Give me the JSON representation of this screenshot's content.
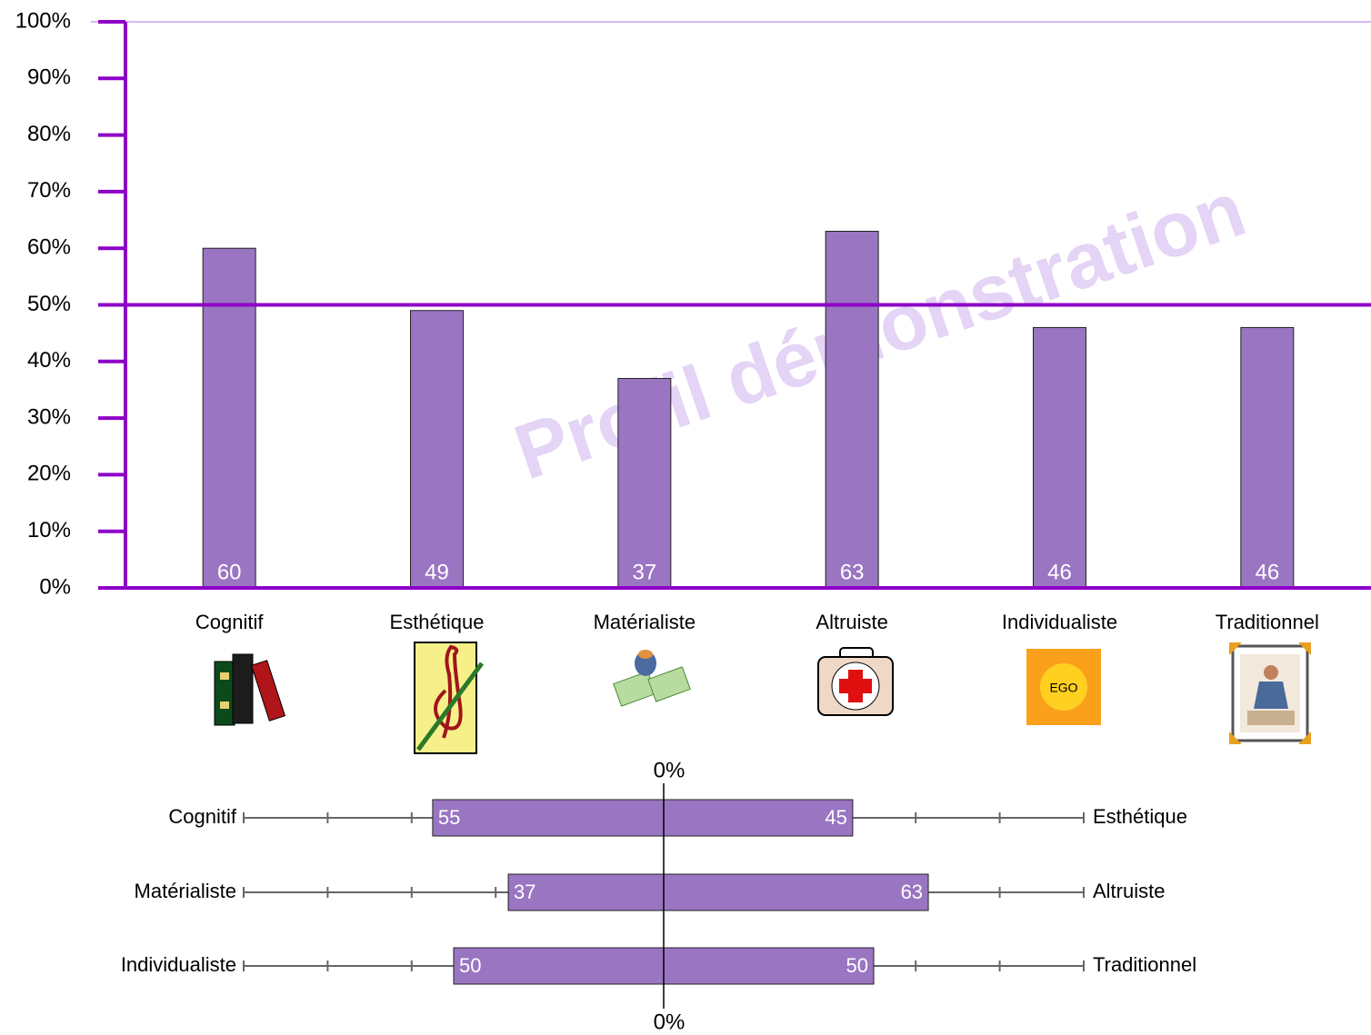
{
  "chart_data": [
    {
      "type": "bar",
      "categories": [
        "Cognitif",
        "Esthétique",
        "Matérialiste",
        "Altruiste",
        "Individualiste",
        "Traditionnel"
      ],
      "values": [
        60,
        49,
        37,
        63,
        46,
        46
      ],
      "color": "#9a75c2",
      "axis_color": "#8e00c8",
      "ylim": [
        0,
        100
      ],
      "yticks": [
        {
          "value": 0,
          "label": "0%"
        },
        {
          "value": 10,
          "label": "10%"
        },
        {
          "value": 20,
          "label": "20%"
        },
        {
          "value": 30,
          "label": "30%"
        },
        {
          "value": 40,
          "label": "40%"
        },
        {
          "value": 50,
          "label": "50%"
        },
        {
          "value": 60,
          "label": "60%"
        },
        {
          "value": 70,
          "label": "70%"
        },
        {
          "value": 80,
          "label": "80%"
        },
        {
          "value": 90,
          "label": "90%"
        },
        {
          "value": 100,
          "label": "100%"
        }
      ],
      "reference_line": 50,
      "watermark": "Profil démonstration",
      "icon_label": "EGO"
    },
    {
      "type": "diverging_bar",
      "rows": [
        {
          "left_label": "Cognitif",
          "right_label": "Esthétique",
          "left_value": 55,
          "right_value": 45
        },
        {
          "left_label": "Matérialiste",
          "right_label": "Altruiste",
          "left_value": 37,
          "right_value": 63
        },
        {
          "left_label": "Individualiste",
          "right_label": "Traditionnel",
          "left_value": 50,
          "right_value": 50
        }
      ],
      "color": "#9a75c2",
      "xlim": [
        -100,
        100
      ],
      "xticks": [
        {
          "value": 0,
          "label": "0%"
        }
      ],
      "minor_ticks": [
        -100,
        -80,
        -60,
        -40,
        -20,
        20,
        40,
        60,
        80,
        100
      ]
    }
  ]
}
